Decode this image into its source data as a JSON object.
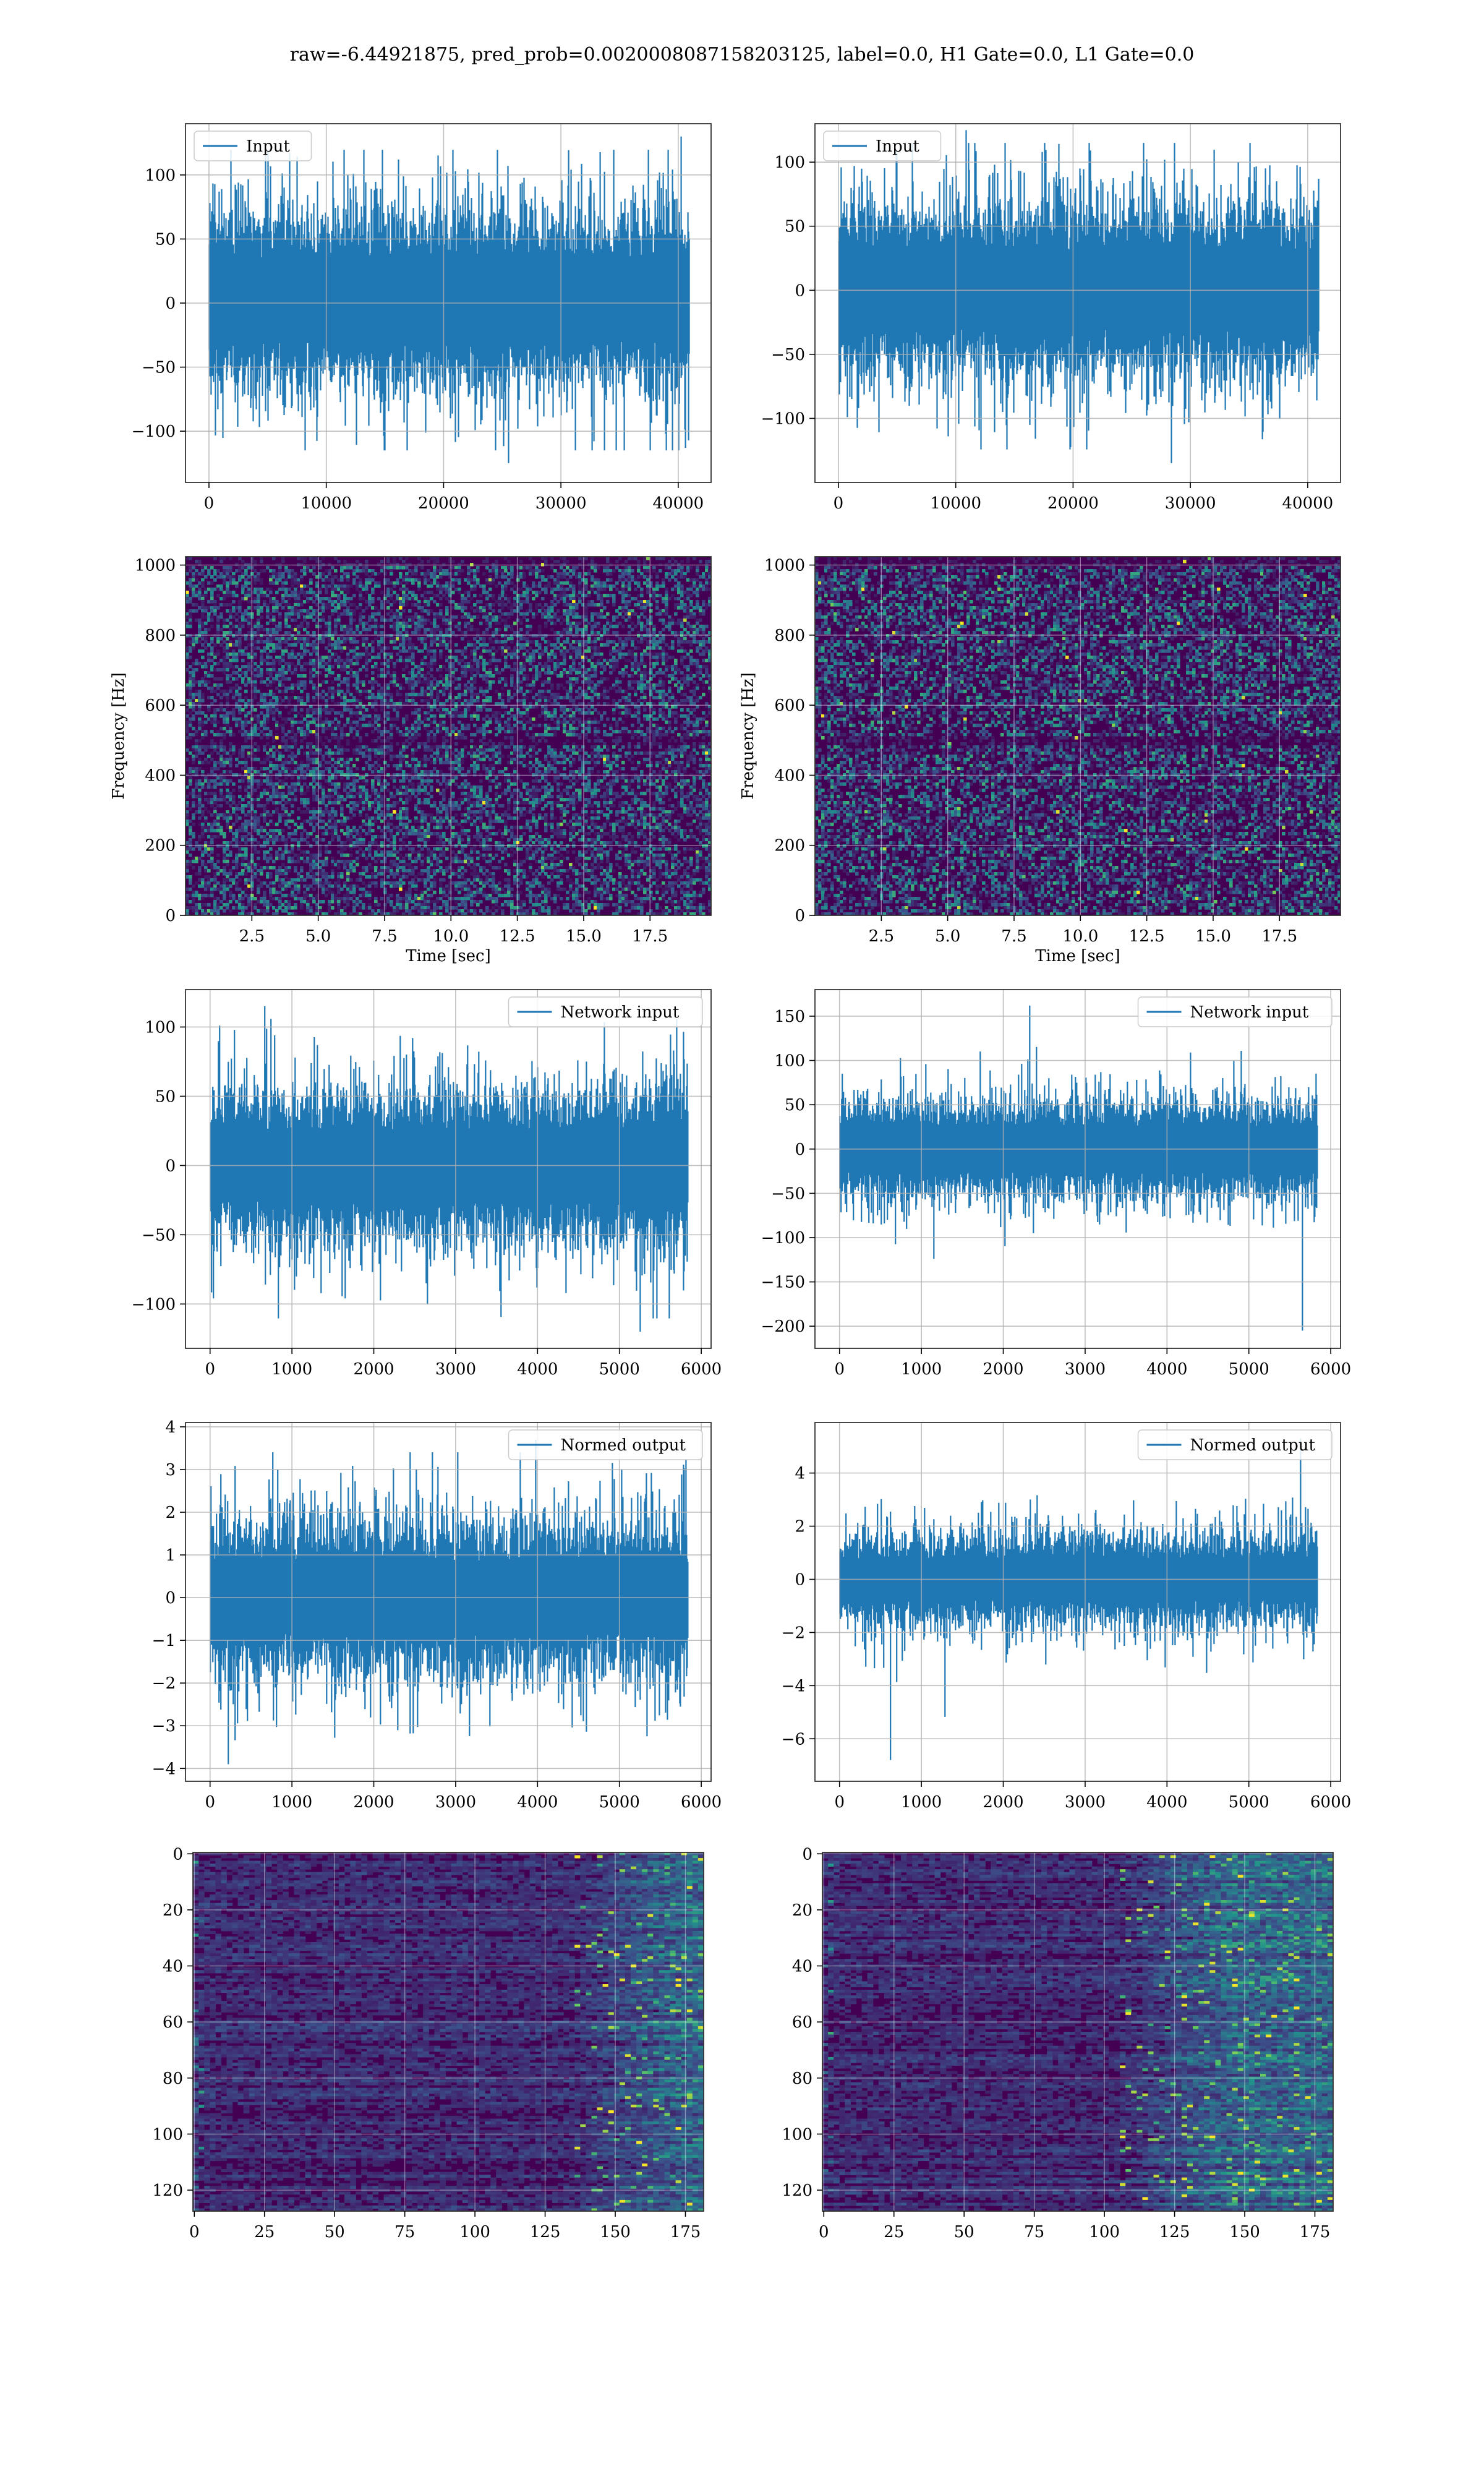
{
  "figure": {
    "suptitle": "raw=-6.44921875, pred_prob=0.0020008087158203125, label=0.0, H1 Gate=0.0, L1 Gate=0.0"
  },
  "colors": {
    "line": "#1f77b4",
    "grid": "#b0b0b0",
    "viridis_dark": "#440154",
    "viridis_mid": "#21918c",
    "viridis_bright": "#fde725"
  },
  "chart_data": [
    {
      "id": "input_left",
      "type": "line",
      "series": [
        {
          "name": "Input",
          "values": []
        }
      ],
      "legend": "top-left",
      "xlim": [
        -2000,
        42800
      ],
      "ylim": [
        -140,
        140
      ],
      "xticks": [
        0,
        10000,
        20000,
        30000,
        40000
      ],
      "xticklabels": [
        "0",
        "10000",
        "20000",
        "30000",
        "40000"
      ],
      "yticks": [
        -100,
        -50,
        0,
        50,
        100
      ],
      "yticklabels": [
        "−100",
        "−50",
        "0",
        "50",
        "100"
      ],
      "signal": {
        "n": 40960,
        "band": [
          -55,
          60
        ],
        "peak_min": -125,
        "peak_max": 130
      }
    },
    {
      "id": "input_right",
      "type": "line",
      "series": [
        {
          "name": "Input",
          "values": []
        }
      ],
      "legend": "top-left",
      "xlim": [
        -2000,
        42800
      ],
      "ylim": [
        -150,
        130
      ],
      "xticks": [
        0,
        10000,
        20000,
        30000,
        40000
      ],
      "xticklabels": [
        "0",
        "10000",
        "20000",
        "30000",
        "40000"
      ],
      "yticks": [
        -100,
        -50,
        0,
        50,
        100
      ],
      "yticklabels": [
        "−100",
        "−50",
        "0",
        "50",
        "100"
      ],
      "signal": {
        "n": 40960,
        "band": [
          -55,
          55
        ],
        "peak_min": -135,
        "peak_max": 125
      }
    },
    {
      "id": "spec_left",
      "type": "heatmap",
      "xlabel": "Time [sec]",
      "ylabel": "Frequency [Hz]",
      "xlim": [
        0,
        19.8
      ],
      "ylim": [
        0,
        1024
      ],
      "xticks": [
        2.5,
        5,
        7.5,
        10,
        12.5,
        15,
        17.5
      ],
      "xticklabels": [
        "2.5",
        "5.0",
        "7.5",
        "10.0",
        "12.5",
        "15.0",
        "17.5"
      ],
      "yticks": [
        0,
        200,
        400,
        600,
        800,
        1000
      ],
      "yticklabels": [
        "0",
        "200",
        "400",
        "600",
        "800",
        "1000"
      ],
      "dark_bands_hz": [
        500,
        1010
      ]
    },
    {
      "id": "spec_right",
      "type": "heatmap",
      "xlabel": "Time [sec]",
      "ylabel": "Frequency [Hz]",
      "xlim": [
        0,
        19.8
      ],
      "ylim": [
        0,
        1024
      ],
      "xticks": [
        2.5,
        5,
        7.5,
        10,
        12.5,
        15,
        17.5
      ],
      "xticklabels": [
        "2.5",
        "5.0",
        "7.5",
        "10.0",
        "12.5",
        "15.0",
        "17.5"
      ],
      "yticks": [
        0,
        200,
        400,
        600,
        800,
        1000
      ],
      "yticklabels": [
        "0",
        "200",
        "400",
        "600",
        "800",
        "1000"
      ],
      "dark_bands_hz": [
        500,
        1010
      ]
    },
    {
      "id": "net_left",
      "type": "line",
      "series": [
        {
          "name": "Network input",
          "values": []
        }
      ],
      "legend": "top-right",
      "xlim": [
        -300,
        6120
      ],
      "ylim": [
        -132,
        127
      ],
      "xticks": [
        0,
        1000,
        2000,
        3000,
        4000,
        5000,
        6000
      ],
      "xticklabels": [
        "0",
        "1000",
        "2000",
        "3000",
        "4000",
        "5000",
        "6000"
      ],
      "yticks": [
        -100,
        -50,
        0,
        50,
        100
      ],
      "yticklabels": [
        "−100",
        "−50",
        "0",
        "50",
        "100"
      ],
      "signal": {
        "n": 5840,
        "band": [
          -45,
          45
        ],
        "peak_min": -120,
        "peak_max": 115
      }
    },
    {
      "id": "net_right",
      "type": "line",
      "series": [
        {
          "name": "Network input",
          "values": []
        }
      ],
      "legend": "top-right",
      "xlim": [
        -300,
        6120
      ],
      "ylim": [
        -225,
        180
      ],
      "xticks": [
        0,
        1000,
        2000,
        3000,
        4000,
        5000,
        6000
      ],
      "xticklabels": [
        "0",
        "1000",
        "2000",
        "3000",
        "4000",
        "5000",
        "6000"
      ],
      "yticks": [
        -200,
        -150,
        -100,
        -50,
        0,
        50,
        100,
        150
      ],
      "yticklabels": [
        "−200",
        "−150",
        "−100",
        "−50",
        "0",
        "50",
        "100",
        "150"
      ],
      "signal": {
        "n": 5840,
        "band": [
          -45,
          45
        ],
        "peak_min": -205,
        "peak_max": 162
      }
    },
    {
      "id": "norm_left",
      "type": "line",
      "series": [
        {
          "name": "Normed output",
          "values": []
        }
      ],
      "legend": "top-right",
      "xlim": [
        -300,
        6120
      ],
      "ylim": [
        -4.3,
        4.1
      ],
      "xticks": [
        0,
        1000,
        2000,
        3000,
        4000,
        5000,
        6000
      ],
      "xticklabels": [
        "0",
        "1000",
        "2000",
        "3000",
        "4000",
        "5000",
        "6000"
      ],
      "yticks": [
        -4,
        -3,
        -2,
        -1,
        0,
        1,
        2,
        3,
        4
      ],
      "yticklabels": [
        "−4",
        "−3",
        "−2",
        "−1",
        "0",
        "1",
        "2",
        "3",
        "4"
      ],
      "signal": {
        "n": 5840,
        "band": [
          -1.5,
          1.5
        ],
        "peak_min": -3.9,
        "peak_max": 3.7
      }
    },
    {
      "id": "norm_right",
      "type": "line",
      "series": [
        {
          "name": "Normed output",
          "values": []
        }
      ],
      "legend": "top-right",
      "xlim": [
        -300,
        6120
      ],
      "ylim": [
        -7.6,
        5.9
      ],
      "xticks": [
        0,
        1000,
        2000,
        3000,
        4000,
        5000,
        6000
      ],
      "xticklabels": [
        "0",
        "1000",
        "2000",
        "3000",
        "4000",
        "5000",
        "6000"
      ],
      "yticks": [
        -6,
        -4,
        -2,
        0,
        2,
        4
      ],
      "yticklabels": [
        "−6",
        "−4",
        "−2",
        "0",
        "2",
        "4"
      ],
      "signal": {
        "n": 5840,
        "band": [
          -1.4,
          1.4
        ],
        "peak_min": -6.8,
        "peak_max": 5.3
      }
    },
    {
      "id": "feat_left",
      "type": "heatmap",
      "xlim": [
        -0.5,
        181.5
      ],
      "ylim": [
        127.5,
        -0.5
      ],
      "xticks": [
        0,
        25,
        50,
        75,
        100,
        125,
        150,
        175
      ],
      "xticklabels": [
        "0",
        "25",
        "50",
        "75",
        "100",
        "125",
        "150",
        "175"
      ],
      "yticks": [
        0,
        20,
        40,
        60,
        80,
        100,
        120
      ],
      "yticklabels": [
        "0",
        "20",
        "40",
        "60",
        "80",
        "100",
        "120"
      ],
      "rows": 128,
      "cols": 182,
      "bright_from_col": 135
    },
    {
      "id": "feat_right",
      "type": "heatmap",
      "xlim": [
        -0.5,
        181.5
      ],
      "ylim": [
        127.5,
        -0.5
      ],
      "xticks": [
        0,
        25,
        50,
        75,
        100,
        125,
        150,
        175
      ],
      "xticklabels": [
        "0",
        "25",
        "50",
        "75",
        "100",
        "125",
        "150",
        "175"
      ],
      "yticks": [
        0,
        20,
        40,
        60,
        80,
        100,
        120
      ],
      "yticklabels": [
        "0",
        "20",
        "40",
        "60",
        "80",
        "100",
        "120"
      ],
      "rows": 128,
      "cols": 182,
      "bright_from_col": 105
    }
  ]
}
